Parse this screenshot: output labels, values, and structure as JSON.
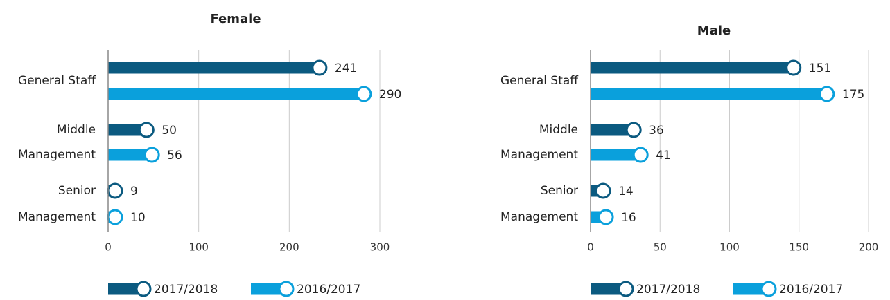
{
  "chart_data": [
    {
      "type": "bar",
      "title": "Female",
      "categories": [
        "General Staff",
        "Middle Management",
        "Senior Management"
      ],
      "series": [
        {
          "name": "2017/2018",
          "color": "#0b5a80",
          "values": [
            241,
            50,
            9
          ]
        },
        {
          "name": "2016/2017",
          "color": "#0aa0dc",
          "values": [
            290,
            56,
            10
          ]
        }
      ],
      "xlim": [
        0,
        300
      ],
      "xticks": [
        0,
        100,
        200,
        300
      ],
      "grid": true
    },
    {
      "type": "bar",
      "title": "Male",
      "categories": [
        "General Staff",
        "Middle Management",
        "Senior Management"
      ],
      "series": [
        {
          "name": "2017/2018",
          "color": "#0b5a80",
          "values": [
            151,
            36,
            14
          ]
        },
        {
          "name": "2016/2017",
          "color": "#0aa0dc",
          "values": [
            175,
            41,
            16
          ]
        }
      ],
      "xlim": [
        0,
        200
      ],
      "xticks": [
        0,
        50,
        100,
        150,
        200
      ],
      "grid": true
    }
  ]
}
